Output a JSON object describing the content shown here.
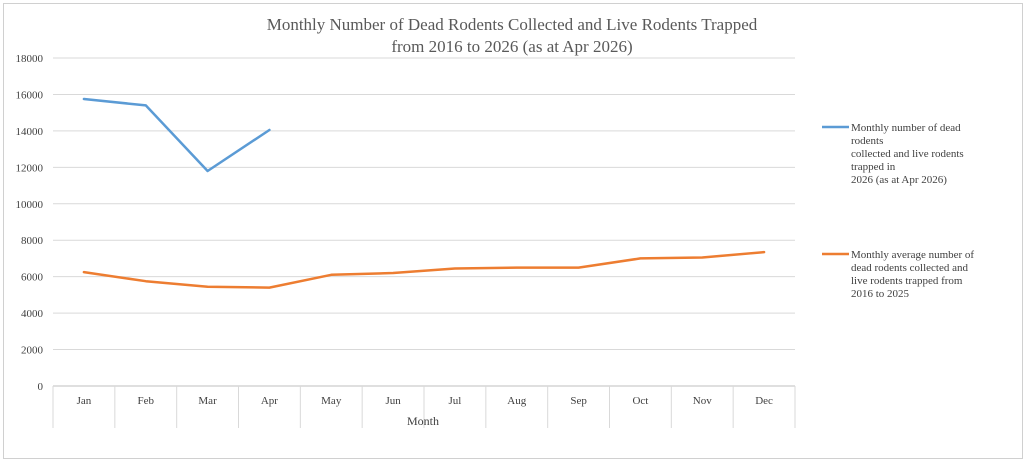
{
  "chart_data": {
    "type": "line",
    "title": "Monthly Number of Dead Rodents Collected and Live Rodents Trapped from 2016 to 2026 (as at Apr 2026)",
    "title_lines": [
      "Monthly Number of Dead Rodents Collected and Live Rodents Trapped",
      "from 2016 to 2026 (as at Apr 2026)"
    ],
    "xlabel": "Month",
    "ylabel": "",
    "categories": [
      "Jan",
      "Feb",
      "Mar",
      "Apr",
      "May",
      "Jun",
      "Jul",
      "Aug",
      "Sep",
      "Oct",
      "Nov",
      "Dec"
    ],
    "ylim": [
      0,
      18000
    ],
    "yticks": [
      0,
      2000,
      4000,
      6000,
      8000,
      10000,
      12000,
      14000,
      16000,
      18000
    ],
    "grid": true,
    "legend_position": "right",
    "series": [
      {
        "name": "Monthly number of dead rodents collected and live rodents trapped in 2026 (as at Apr 2026)",
        "legend_lines": [
          "Monthly number of dead",
          "rodents",
          "collected and live rodents",
          "trapped in",
          "2026 (as at Apr 2026)"
        ],
        "color": "#5b9bd5",
        "values": [
          15750,
          15400,
          11800,
          14050,
          null,
          null,
          null,
          null,
          null,
          null,
          null,
          null
        ]
      },
      {
        "name": "Monthly average number of dead rodents collected and live rodents trapped from 2016 to 2025",
        "legend_lines": [
          "Monthly average number of",
          "dead rodents collected and",
          "live rodents trapped from",
          "2016 to 2025"
        ],
        "color": "#ed7d31",
        "values": [
          6250,
          5750,
          5450,
          5400,
          6100,
          6200,
          6450,
          6500,
          6500,
          7000,
          7050,
          7350
        ]
      }
    ]
  }
}
